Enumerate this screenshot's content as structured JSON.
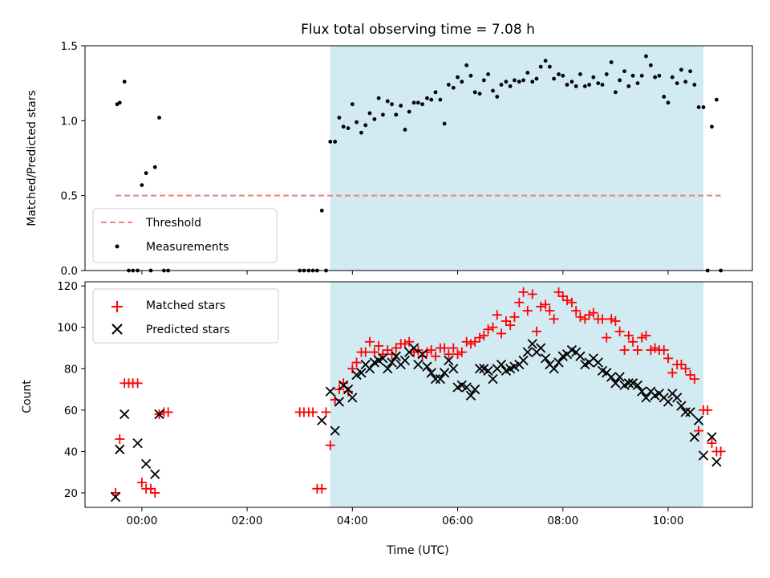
{
  "chart_data": [
    {
      "type": "scatter",
      "title": "Flux total observing time = 7.08 h",
      "xlabel": "",
      "ylabel": "Matched/Predicted stars",
      "xlim": [
        -1.08,
        11.6
      ],
      "ylim": [
        0,
        1.5
      ],
      "yticks": [
        0,
        0.5,
        1.0,
        1.5
      ],
      "ytick_labels": [
        "0.0",
        "0.5",
        "1.0",
        "1.5"
      ],
      "shaded_span": [
        3.58,
        10.67
      ],
      "threshold": {
        "name": "Threshold",
        "value": 0.5,
        "x": [
          -0.5,
          11.0
        ],
        "color": "#f08080"
      },
      "series": [
        {
          "name": "Measurements",
          "color": "#000000",
          "x": [
            -0.47,
            -0.42,
            -0.33,
            -0.25,
            -0.17,
            -0.08,
            0.0,
            0.08,
            0.17,
            0.25,
            0.33,
            0.42,
            0.5,
            3.0,
            3.08,
            3.17,
            3.25,
            3.33,
            3.42,
            3.5,
            3.58,
            3.67,
            3.75,
            3.83,
            3.92,
            4.0,
            4.08,
            4.17,
            4.25,
            4.33,
            4.42,
            4.5,
            4.58,
            4.67,
            4.75,
            4.83,
            4.92,
            5.0,
            5.08,
            5.17,
            5.25,
            5.33,
            5.42,
            5.5,
            5.58,
            5.67,
            5.75,
            5.83,
            5.92,
            6.0,
            6.08,
            6.17,
            6.25,
            6.33,
            6.42,
            6.5,
            6.58,
            6.67,
            6.75,
            6.83,
            6.92,
            7.0,
            7.08,
            7.17,
            7.25,
            7.33,
            7.42,
            7.5,
            7.58,
            7.67,
            7.75,
            7.83,
            7.92,
            8.0,
            8.08,
            8.17,
            8.25,
            8.33,
            8.42,
            8.5,
            8.58,
            8.67,
            8.75,
            8.83,
            8.92,
            9.0,
            9.08,
            9.17,
            9.25,
            9.33,
            9.42,
            9.5,
            9.58,
            9.67,
            9.75,
            9.83,
            9.92,
            10.0,
            10.08,
            10.17,
            10.25,
            10.33,
            10.42,
            10.5,
            10.58,
            10.67,
            10.75,
            10.83,
            10.92,
            11.0
          ],
          "y": [
            1.11,
            1.12,
            1.26,
            0,
            0,
            0,
            0.57,
            0.65,
            0,
            0.69,
            1.02,
            0,
            0,
            0,
            0,
            0,
            0,
            0,
            0.4,
            0,
            0.86,
            0.86,
            1.02,
            0.96,
            0.95,
            1.11,
            0.99,
            0.92,
            0.97,
            1.05,
            1.01,
            1.15,
            1.04,
            1.13,
            1.11,
            1.04,
            1.1,
            0.94,
            1.06,
            1.12,
            1.12,
            1.11,
            1.15,
            1.14,
            1.19,
            1.14,
            0.98,
            1.24,
            1.22,
            1.29,
            1.26,
            1.37,
            1.3,
            1.19,
            1.18,
            1.27,
            1.31,
            1.2,
            1.16,
            1.24,
            1.26,
            1.23,
            1.27,
            1.26,
            1.27,
            1.32,
            1.26,
            1.28,
            1.36,
            1.4,
            1.36,
            1.28,
            1.31,
            1.3,
            1.24,
            1.26,
            1.23,
            1.31,
            1.23,
            1.24,
            1.29,
            1.25,
            1.24,
            1.31,
            1.39,
            1.19,
            1.27,
            1.33,
            1.23,
            1.3,
            1.25,
            1.3,
            1.43,
            1.37,
            1.29,
            1.3,
            1.16,
            1.12,
            1.29,
            1.25,
            1.34,
            1.26,
            1.33,
            1.24,
            1.09,
            1.09,
            0,
            0.96,
            1.14,
            0
          ]
        }
      ],
      "legend": [
        {
          "label": "Threshold",
          "marker": "dash"
        },
        {
          "label": "Measurements",
          "marker": "dot"
        }
      ],
      "legend_position": "lower-left"
    },
    {
      "type": "scatter",
      "title": "",
      "xlabel": "Time (UTC)",
      "ylabel": "Count",
      "xlim": [
        -1.08,
        11.6
      ],
      "ylim": [
        13,
        122
      ],
      "xticks": [
        0,
        2,
        4,
        6,
        8,
        10
      ],
      "xtick_labels": [
        "00:00",
        "02:00",
        "04:00",
        "06:00",
        "08:00",
        "10:00"
      ],
      "yticks": [
        20,
        40,
        60,
        80,
        100,
        120
      ],
      "ytick_labels": [
        "20",
        "40",
        "60",
        "80",
        "100",
        "120"
      ],
      "shaded_span": [
        3.58,
        10.67
      ],
      "series": [
        {
          "name": "Matched stars",
          "marker": "plus",
          "color": "#ff0000",
          "x": [
            -0.5,
            -0.42,
            -0.33,
            -0.25,
            -0.17,
            -0.08,
            0.0,
            0.08,
            0.17,
            0.25,
            0.33,
            0.42,
            0.5,
            3.0,
            3.08,
            3.17,
            3.25,
            3.33,
            3.42,
            3.5,
            3.58,
            3.67,
            3.75,
            3.83,
            3.92,
            4.0,
            4.08,
            4.17,
            4.25,
            4.33,
            4.42,
            4.5,
            4.58,
            4.67,
            4.75,
            4.83,
            4.92,
            5.0,
            5.08,
            5.17,
            5.25,
            5.33,
            5.42,
            5.5,
            5.58,
            5.67,
            5.75,
            5.83,
            5.92,
            6.0,
            6.08,
            6.17,
            6.25,
            6.33,
            6.42,
            6.5,
            6.58,
            6.67,
            6.75,
            6.83,
            6.92,
            7.0,
            7.08,
            7.17,
            7.25,
            7.33,
            7.42,
            7.5,
            7.58,
            7.67,
            7.75,
            7.83,
            7.92,
            8.0,
            8.08,
            8.17,
            8.25,
            8.33,
            8.42,
            8.5,
            8.58,
            8.67,
            8.75,
            8.83,
            8.92,
            9.0,
            9.08,
            9.17,
            9.25,
            9.33,
            9.42,
            9.5,
            9.58,
            9.67,
            9.75,
            9.83,
            9.92,
            10.0,
            10.08,
            10.17,
            10.25,
            10.33,
            10.42,
            10.5,
            10.58,
            10.67,
            10.75,
            10.83,
            10.92,
            11.0
          ],
          "y": [
            20,
            46,
            73,
            73,
            73,
            73,
            25,
            22,
            22,
            20,
            58,
            59,
            59,
            59,
            59,
            59,
            59,
            22,
            22,
            59,
            43,
            65,
            70,
            73,
            69,
            80,
            83,
            88,
            88,
            93,
            88,
            91,
            87,
            89,
            87,
            90,
            92,
            92,
            93,
            88,
            89,
            86,
            88,
            89,
            86,
            90,
            90,
            87,
            90,
            87,
            88,
            93,
            92,
            93,
            95,
            96,
            99,
            100,
            106,
            97,
            103,
            101,
            105,
            112,
            117,
            108,
            116,
            98,
            110,
            111,
            108,
            104,
            117,
            115,
            113,
            112,
            108,
            105,
            104,
            106,
            107,
            104,
            104,
            95,
            104,
            103,
            98,
            89,
            96,
            93,
            89,
            95,
            96,
            89,
            90,
            89,
            89,
            85,
            78,
            82,
            82,
            80,
            77,
            75,
            50,
            60,
            60,
            44,
            40,
            40
          ]
        },
        {
          "name": "Predicted stars",
          "marker": "x",
          "color": "#000000",
          "x": [
            -0.5,
            -0.42,
            -0.33,
            -0.08,
            0.08,
            0.25,
            0.33,
            3.42,
            3.58,
            3.67,
            3.75,
            3.83,
            3.92,
            4.0,
            4.08,
            4.17,
            4.25,
            4.33,
            4.42,
            4.5,
            4.58,
            4.67,
            4.75,
            4.83,
            4.92,
            5.0,
            5.08,
            5.17,
            5.25,
            5.33,
            5.42,
            5.5,
            5.58,
            5.67,
            5.75,
            5.83,
            5.92,
            6.0,
            6.08,
            6.17,
            6.25,
            6.33,
            6.42,
            6.5,
            6.58,
            6.67,
            6.75,
            6.83,
            6.92,
            7.0,
            7.08,
            7.17,
            7.25,
            7.33,
            7.42,
            7.5,
            7.58,
            7.67,
            7.75,
            7.83,
            7.92,
            8.0,
            8.08,
            8.17,
            8.25,
            8.33,
            8.42,
            8.5,
            8.58,
            8.67,
            8.75,
            8.83,
            8.92,
            9.0,
            9.08,
            9.17,
            9.25,
            9.33,
            9.42,
            9.5,
            9.58,
            9.67,
            9.75,
            9.83,
            9.92,
            10.0,
            10.08,
            10.17,
            10.25,
            10.33,
            10.42,
            10.5,
            10.58,
            10.67,
            10.83,
            10.92
          ],
          "y": [
            18,
            41,
            58,
            44,
            34,
            29,
            58,
            55,
            69,
            50,
            64,
            72,
            70,
            66,
            77,
            78,
            82,
            80,
            83,
            84,
            85,
            80,
            83,
            86,
            82,
            84,
            88,
            90,
            82,
            87,
            81,
            78,
            75,
            75,
            78,
            84,
            80,
            71,
            72,
            71,
            67,
            70,
            80,
            80,
            79,
            75,
            80,
            82,
            79,
            80,
            81,
            82,
            84,
            88,
            92,
            88,
            90,
            85,
            82,
            80,
            83,
            86,
            87,
            89,
            88,
            86,
            82,
            83,
            85,
            83,
            79,
            78,
            76,
            73,
            76,
            72,
            73,
            73,
            72,
            69,
            66,
            69,
            67,
            68,
            66,
            64,
            68,
            66,
            62,
            59,
            59,
            47,
            55,
            38,
            47,
            35
          ]
        }
      ],
      "legend": [
        {
          "label": "Matched stars",
          "marker": "plus"
        },
        {
          "label": "Predicted stars",
          "marker": "x"
        }
      ],
      "legend_position": "upper-left"
    }
  ]
}
